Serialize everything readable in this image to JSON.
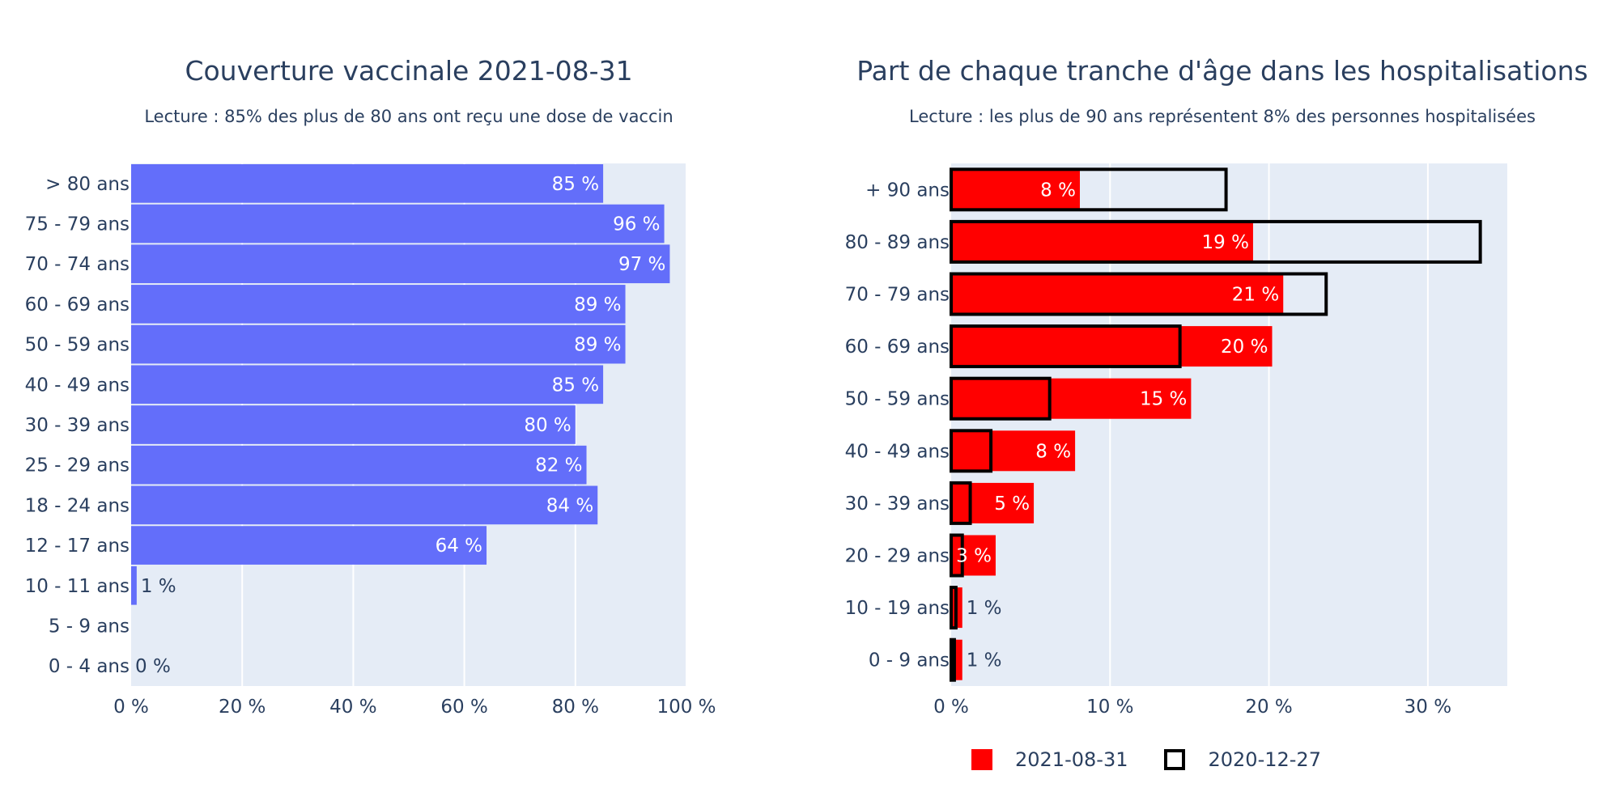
{
  "colors": {
    "plot_bg": "#e5ecf6",
    "grid": "#ffffff",
    "text": "#2a3f5f",
    "coverage_bar": "#636efa",
    "hosp_2021": "#ff0000",
    "hosp_2020_outline": "#000000"
  },
  "left": {
    "title": "Couverture vaccinale 2021-08-31",
    "subtitle": "Lecture : 85% des plus de 80 ans ont reçu une dose de vaccin"
  },
  "right": {
    "title": "Part de chaque tranche d'âge dans les hospitalisations",
    "subtitle": "Lecture : les plus de 90 ans représentent 8% des personnes hospitalisées"
  },
  "legend": {
    "series_2021": "2021-08-31",
    "series_2020": "2020-12-27"
  },
  "chart_data": [
    {
      "type": "bar",
      "orientation": "horizontal",
      "title": "Couverture vaccinale 2021-08-31",
      "subtitle": "Lecture : 85% des plus de 80 ans ont reçu une dose de vaccin",
      "categories": [
        "> 80 ans",
        "75 - 79 ans",
        "70 - 74 ans",
        "60 - 69 ans",
        "50 - 59 ans",
        "40 - 49 ans",
        "30 - 39 ans",
        "25 - 29 ans",
        "18 - 24 ans",
        "12 - 17 ans",
        "10 - 11 ans",
        "5 - 9 ans",
        "0 - 4 ans"
      ],
      "values": [
        85,
        96,
        97,
        89,
        89,
        85,
        80,
        82,
        84,
        64,
        1,
        null,
        0
      ],
      "labels": [
        "85 %",
        "96 %",
        "97 %",
        "89 %",
        "89 %",
        "85 %",
        "80 %",
        "82 %",
        "84 %",
        "64 %",
        "1 %",
        "",
        "0 %"
      ],
      "xlim": [
        0,
        100
      ],
      "xticks": [
        0,
        20,
        40,
        60,
        80,
        100
      ],
      "xtick_labels": [
        "0 %",
        "20 %",
        "40 %",
        "60 %",
        "80 %",
        "100 %"
      ],
      "grid": true
    },
    {
      "type": "bar",
      "orientation": "horizontal",
      "title": "Part de chaque tranche d'âge dans les hospitalisations",
      "subtitle": "Lecture : les plus de 90 ans représentent 8% des personnes hospitalisées",
      "categories": [
        "+ 90 ans",
        "80 - 89 ans",
        "70 - 79 ans",
        "60 - 69 ans",
        "50 - 59 ans",
        "40 - 49 ans",
        "30 - 39 ans",
        "20 - 29 ans",
        "10 - 19 ans",
        "0 - 9 ans"
      ],
      "series": [
        {
          "name": "2021-08-31",
          "values": [
            8.1,
            19.0,
            20.9,
            20.2,
            15.1,
            7.8,
            5.2,
            2.8,
            0.7,
            0.7
          ],
          "labels": [
            "8 %",
            "19 %",
            "21 %",
            "20 %",
            "15 %",
            "8 %",
            "5 %",
            "3 %",
            "1 %",
            "1 %"
          ]
        },
        {
          "name": "2020-12-27",
          "values": [
            17.3,
            33.3,
            23.6,
            14.4,
            6.2,
            2.5,
            1.2,
            0.7,
            0.3,
            0.2
          ]
        }
      ],
      "xlim": [
        0,
        35
      ],
      "xticks": [
        0,
        10,
        20,
        30
      ],
      "xtick_labels": [
        "0 %",
        "10 %",
        "20 %",
        "30 %"
      ],
      "legend": "bottom",
      "grid": true
    }
  ]
}
